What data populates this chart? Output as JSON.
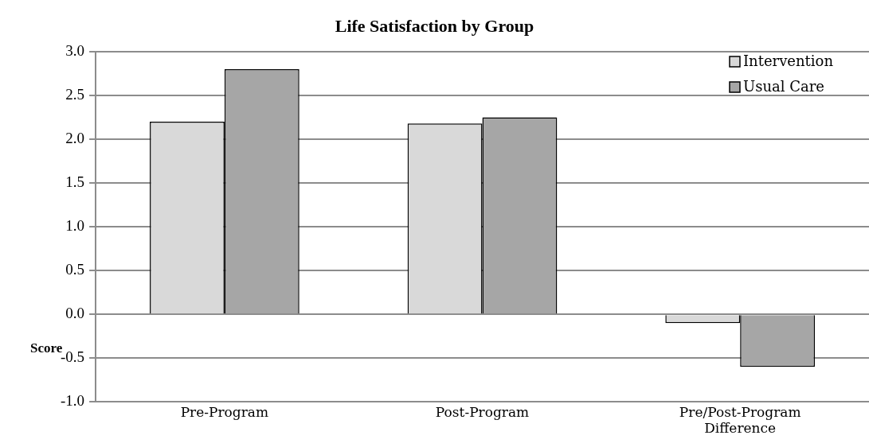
{
  "chart_data": {
    "type": "bar",
    "title": "Life Satisfaction by Group",
    "ylabel": "Score",
    "categories": [
      "Pre-Program",
      "Post-Program",
      "Pre/Post-Program Difference"
    ],
    "series": [
      {
        "name": "Intervention",
        "color": "#d9d9d9",
        "values": [
          2.2,
          2.18,
          -0.1
        ]
      },
      {
        "name": "Usual Care",
        "color": "#a6a6a6",
        "values": [
          2.8,
          2.25,
          -0.6
        ]
      }
    ],
    "ylim": [
      -1.0,
      3.0
    ],
    "yticks": [
      {
        "value": -1,
        "label": "-1.0"
      },
      {
        "value": -0.5,
        "label": "-0.5"
      },
      {
        "value": 0,
        "label": "0.0"
      },
      {
        "value": 0.5,
        "label": "0.5"
      },
      {
        "value": 1,
        "label": "1.0"
      },
      {
        "value": 1.5,
        "label": "1.5"
      },
      {
        "value": 2,
        "label": "2.0"
      },
      {
        "value": 2.5,
        "label": "2.5"
      },
      {
        "value": 3,
        "label": "3.0"
      }
    ],
    "grid": "y",
    "legend": "top right"
  }
}
